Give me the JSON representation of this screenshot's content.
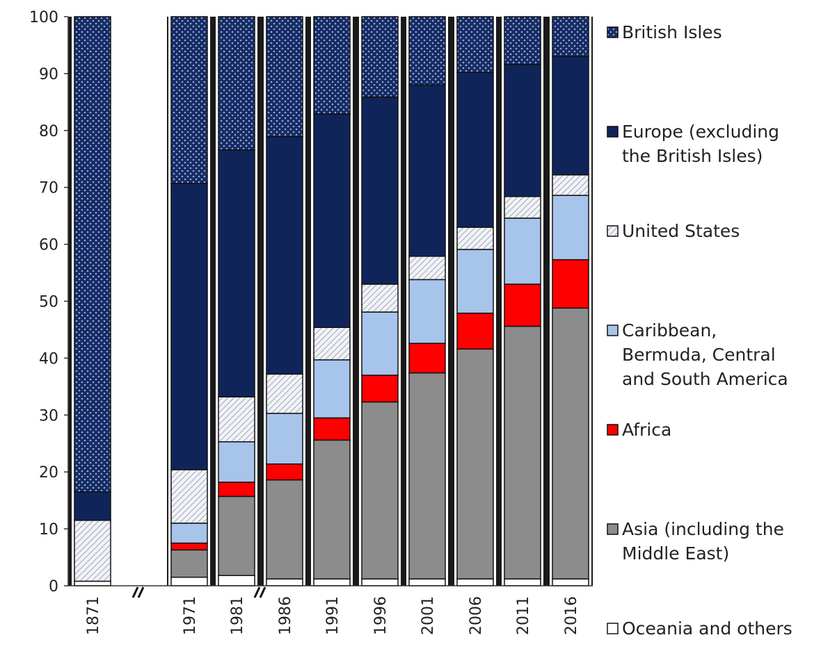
{
  "chart_data": {
    "type": "bar",
    "stacked": true,
    "categories": [
      "1871",
      "1971",
      "1981",
      "1986",
      "1991",
      "1996",
      "2001",
      "2006",
      "2011",
      "2016"
    ],
    "axis_break_after": [
      "1871",
      "1981"
    ],
    "ylim": [
      0,
      100
    ],
    "yticks": [
      0,
      10,
      20,
      30,
      40,
      50,
      60,
      70,
      80,
      90,
      100
    ],
    "title": "",
    "xlabel": "",
    "ylabel": "",
    "grid": false,
    "legend_position": "right",
    "series": [
      {
        "name": "Oceania and others",
        "color": "#ffffff",
        "pattern": "none",
        "values": [
          0.8,
          1.5,
          1.8,
          1.2,
          1.2,
          1.2,
          1.2,
          1.2,
          1.2,
          1.2
        ]
      },
      {
        "name": "Asia (including the Middle East)",
        "color": "#8c8c8c",
        "pattern": "none",
        "values": [
          0,
          4.8,
          13.9,
          17.4,
          24.4,
          31.1,
          36.2,
          40.4,
          44.4,
          47.6
        ]
      },
      {
        "name": "Africa",
        "color": "#ff0000",
        "pattern": "none",
        "values": [
          0,
          1.2,
          2.5,
          2.8,
          3.9,
          4.7,
          5.2,
          6.3,
          7.4,
          8.5
        ]
      },
      {
        "name": "Caribbean, Bermuda, Central and South America",
        "color": "#a7c4ea",
        "pattern": "none",
        "values": [
          0,
          3.5,
          7.1,
          8.9,
          10.2,
          11.1,
          11.2,
          11.2,
          11.6,
          11.3
        ]
      },
      {
        "name": "United States",
        "color": "#d8dde8",
        "pattern": "hatch",
        "values": [
          10.7,
          9.4,
          7.9,
          6.9,
          5.7,
          4.9,
          4.1,
          3.9,
          3.8,
          3.6
        ]
      },
      {
        "name": "Europe (excluding the British Isles)",
        "color": "#0f2459",
        "pattern": "none",
        "values": [
          5.0,
          50.3,
          43.4,
          41.7,
          37.5,
          32.9,
          30.1,
          27.2,
          23.2,
          20.8
        ]
      },
      {
        "name": "British Isles",
        "color": "#142b66",
        "pattern": "dots",
        "values": [
          83.5,
          29.3,
          23.4,
          21.1,
          17.1,
          14.1,
          12.0,
          9.8,
          8.4,
          7.0
        ]
      }
    ]
  }
}
